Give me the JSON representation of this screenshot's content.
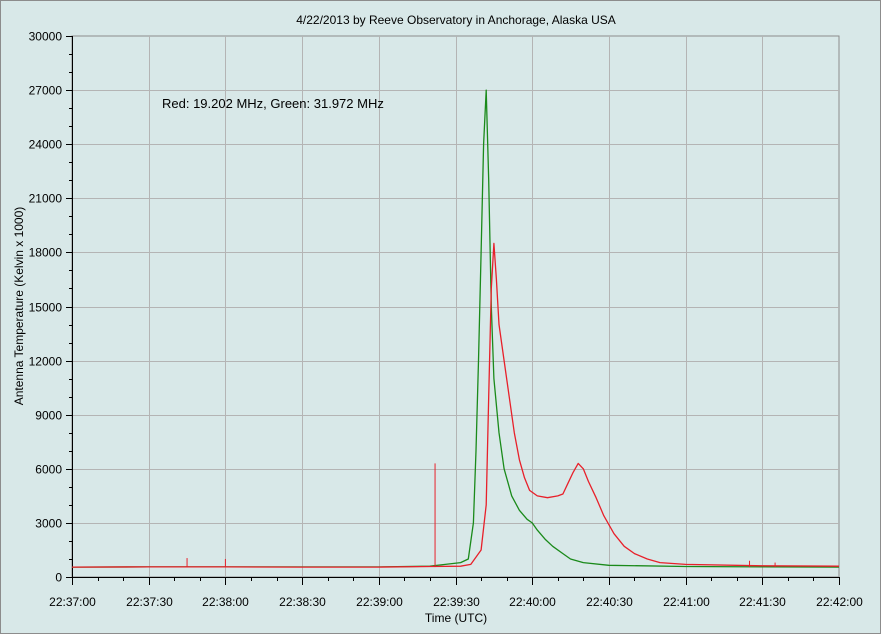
{
  "chart_data": {
    "type": "line",
    "title": "4/22/2013  by  Reeve Observatory  in  Anchorage, Alaska  USA",
    "xlabel": "Time (UTC)",
    "ylabel": "Antenna Temperature (Kelvin x 1000)",
    "annotation": "Red: 19.202 MHz, Green: 31.972 MHz",
    "xlim": [
      "22:37:00",
      "22:42:00"
    ],
    "ylim": [
      0,
      30000
    ],
    "x_ticks": [
      "22:37:00",
      "22:37:30",
      "22:38:00",
      "22:38:30",
      "22:39:00",
      "22:39:30",
      "22:40:00",
      "22:40:30",
      "22:41:00",
      "22:41:30",
      "22:42:00"
    ],
    "y_ticks": [
      0,
      3000,
      6000,
      9000,
      12000,
      15000,
      18000,
      21000,
      24000,
      27000,
      30000
    ],
    "grid": true,
    "legend": "none",
    "colors": {
      "plot_bg": "#d8e8e8",
      "grid": "#b4b4b4",
      "red": "#e8202a",
      "green": "#1a8a1a"
    },
    "series": [
      {
        "color": "red",
        "points": [
          [
            "22:37:00",
            550
          ],
          [
            "22:37:30",
            560
          ],
          [
            "22:38:00",
            560
          ],
          [
            "22:38:30",
            550
          ],
          [
            "22:39:00",
            550
          ],
          [
            "22:39:20",
            580
          ],
          [
            "22:39:32",
            600
          ],
          [
            "22:39:36",
            700
          ],
          [
            "22:39:40",
            1500
          ],
          [
            "22:39:42",
            4000
          ],
          [
            "22:39:43",
            10000
          ],
          [
            "22:39:44",
            16000
          ],
          [
            "22:39:45",
            18500
          ],
          [
            "22:39:46",
            16500
          ],
          [
            "22:39:47",
            14000
          ],
          [
            "22:39:49",
            12000
          ],
          [
            "22:39:51",
            10000
          ],
          [
            "22:39:53",
            8000
          ],
          [
            "22:39:55",
            6500
          ],
          [
            "22:39:57",
            5500
          ],
          [
            "22:39:59",
            4800
          ],
          [
            "22:40:02",
            4500
          ],
          [
            "22:40:06",
            4400
          ],
          [
            "22:40:10",
            4500
          ],
          [
            "22:40:12",
            4600
          ],
          [
            "22:40:14",
            5200
          ],
          [
            "22:40:16",
            5800
          ],
          [
            "22:40:18",
            6300
          ],
          [
            "22:40:20",
            6000
          ],
          [
            "22:40:22",
            5300
          ],
          [
            "22:40:25",
            4400
          ],
          [
            "22:40:28",
            3400
          ],
          [
            "22:40:32",
            2400
          ],
          [
            "22:40:36",
            1700
          ],
          [
            "22:40:40",
            1300
          ],
          [
            "22:40:45",
            1000
          ],
          [
            "22:40:50",
            800
          ],
          [
            "22:41:00",
            700
          ],
          [
            "22:41:30",
            620
          ],
          [
            "22:42:00",
            600
          ]
        ],
        "spikes": [
          [
            "22:37:45",
            1050
          ],
          [
            "22:38:00",
            1000
          ],
          [
            "22:39:22",
            6300
          ],
          [
            "22:41:25",
            900
          ],
          [
            "22:41:35",
            800
          ]
        ]
      },
      {
        "color": "green",
        "points": [
          [
            "22:37:00",
            550
          ],
          [
            "22:37:30",
            560
          ],
          [
            "22:38:00",
            560
          ],
          [
            "22:38:30",
            560
          ],
          [
            "22:39:00",
            560
          ],
          [
            "22:39:20",
            600
          ],
          [
            "22:39:26",
            700
          ],
          [
            "22:39:32",
            800
          ],
          [
            "22:39:35",
            1000
          ],
          [
            "22:39:37",
            3000
          ],
          [
            "22:39:38",
            7000
          ],
          [
            "22:39:39",
            12000
          ],
          [
            "22:39:40",
            18000
          ],
          [
            "22:39:41",
            24000
          ],
          [
            "22:39:42",
            27000
          ],
          [
            "22:39:43",
            22000
          ],
          [
            "22:39:44",
            15000
          ],
          [
            "22:39:45",
            11000
          ],
          [
            "22:39:47",
            8000
          ],
          [
            "22:39:49",
            6000
          ],
          [
            "22:39:52",
            4500
          ],
          [
            "22:39:55",
            3700
          ],
          [
            "22:39:58",
            3200
          ],
          [
            "22:40:00",
            3000
          ],
          [
            "22:40:02",
            2600
          ],
          [
            "22:40:05",
            2100
          ],
          [
            "22:40:08",
            1700
          ],
          [
            "22:40:12",
            1300
          ],
          [
            "22:40:15",
            1000
          ],
          [
            "22:40:20",
            800
          ],
          [
            "22:40:30",
            650
          ],
          [
            "22:41:00",
            580
          ],
          [
            "22:41:30",
            560
          ],
          [
            "22:42:00",
            550
          ]
        ]
      }
    ]
  }
}
